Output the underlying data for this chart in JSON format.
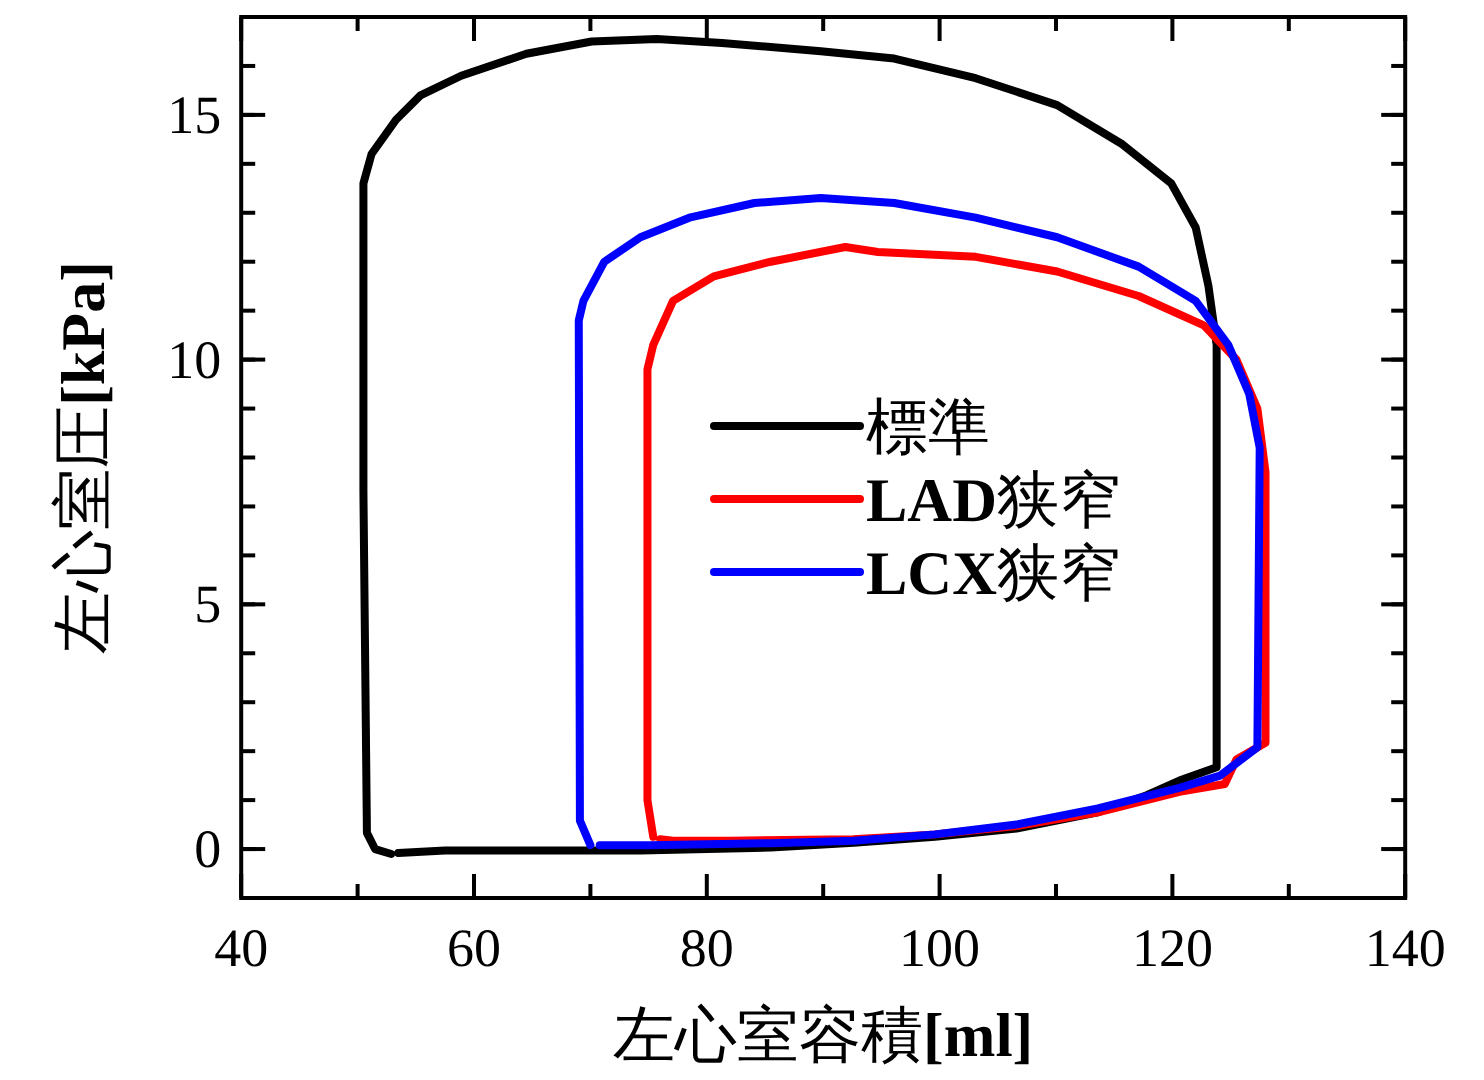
{
  "chart_data": {
    "type": "line",
    "xlabel": "左心室容積**[ml]**",
    "ylabel": "左心室圧**[kPa]**",
    "xlim": [
      40,
      140
    ],
    "ylim": [
      -1,
      17
    ],
    "xticks": [
      40,
      60,
      80,
      100,
      120,
      140
    ],
    "yticks": [
      0,
      5,
      10,
      15
    ],
    "grid": false,
    "legend": "center",
    "marker": "none",
    "line_style": "solid",
    "series": [
      {
        "name": "標準",
        "color": "#000000",
        "x": [
          52.9,
          51.5,
          50.8,
          50.5,
          50.5,
          51.2,
          53.3,
          55.4,
          58.9,
          64.5,
          70.1,
          75.7,
          81.3,
          89.8,
          96.1,
          103.1,
          110.1,
          115.7,
          119.9,
          122.0,
          123.1,
          123.8,
          123.8,
          120.6,
          117.8,
          113.6,
          106.6,
          99.6,
          92.6,
          85.5,
          74.3,
          57.5,
          53.5
        ],
        "values": [
          -0.1,
          0,
          0.33,
          7.3,
          13.6,
          14.2,
          14.9,
          15.4,
          15.8,
          16.25,
          16.5,
          16.55,
          16.47,
          16.3,
          16.15,
          15.75,
          15.2,
          14.4,
          13.6,
          12.7,
          11.5,
          10.3,
          1.67,
          1.4,
          1.1,
          0.75,
          0.42,
          0.25,
          0.13,
          0.03,
          -0.03,
          -0.03,
          -0.08
        ]
      },
      {
        "name": "**LAD**狭窄",
        "color": "#ff0000",
        "x": [
          75.4,
          74.9,
          74.9,
          75.4,
          77.1,
          80.6,
          85.5,
          91.9,
          94.7,
          103.1,
          110.1,
          117.1,
          122.7,
          125.5,
          127.3,
          128.0,
          128.0,
          125.5,
          124.5,
          120.6,
          113.6,
          106.6,
          99.6,
          92.6,
          82.0,
          77.1,
          76.0
        ],
        "values": [
          0.25,
          1.0,
          9.8,
          10.3,
          11.2,
          11.7,
          12.0,
          12.3,
          12.2,
          12.1,
          11.8,
          11.3,
          10.7,
          10.0,
          9.0,
          7.7,
          2.17,
          1.83,
          1.33,
          1.17,
          0.75,
          0.47,
          0.3,
          0.2,
          0.17,
          0.17,
          0.2
        ]
      },
      {
        "name": "**LCX**狭窄",
        "color": "#0000ff",
        "x": [
          70.0,
          69.1,
          69.0,
          69.4,
          71.2,
          74.3,
          78.5,
          84.1,
          89.8,
          96.1,
          103.1,
          110.1,
          117.1,
          122.0,
          124.8,
          126.6,
          127.5,
          127.3,
          124.1,
          120.6,
          113.6,
          106.6,
          99.6,
          92.6,
          85.5,
          75.0,
          70.8
        ],
        "values": [
          0.08,
          0.58,
          10.8,
          11.2,
          12.0,
          12.5,
          12.9,
          13.2,
          13.3,
          13.2,
          12.9,
          12.5,
          11.9,
          11.2,
          10.3,
          9.3,
          8.2,
          2.08,
          1.5,
          1.25,
          0.83,
          0.5,
          0.3,
          0.17,
          0.12,
          0.08,
          0.08
        ]
      }
    ]
  }
}
